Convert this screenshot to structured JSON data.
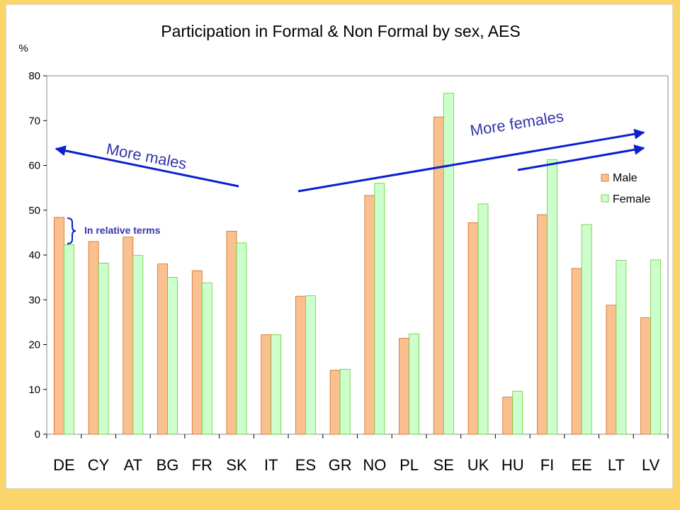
{
  "chart_data": {
    "type": "bar",
    "title": "Participation in Formal & Non Formal by sex, AES",
    "ylabel": "%",
    "xlabel": "",
    "ylim": [
      0,
      80
    ],
    "yticks": [
      0,
      10,
      20,
      30,
      40,
      50,
      60,
      70,
      80
    ],
    "grid": false,
    "legend_position": "right",
    "categories": [
      "DE",
      "CY",
      "AT",
      "BG",
      "FR",
      "SK",
      "IT",
      "ES",
      "GR",
      "NO",
      "PL",
      "SE",
      "UK",
      "HU",
      "FI",
      "EE",
      "LT",
      "LV"
    ],
    "series": [
      {
        "name": "Male",
        "color": "#fac090",
        "values": [
          48.4,
          43.0,
          44.0,
          38.0,
          36.5,
          45.3,
          22.2,
          30.8,
          14.3,
          53.3,
          21.4,
          70.8,
          47.2,
          8.3,
          49.0,
          37.0,
          28.8,
          26.0
        ]
      },
      {
        "name": "Female",
        "color": "#ccffcc",
        "values": [
          42.3,
          38.2,
          39.9,
          35.0,
          33.8,
          42.7,
          22.2,
          30.9,
          14.5,
          56.0,
          22.4,
          76.1,
          51.4,
          9.6,
          61.3,
          46.8,
          38.8,
          38.9
        ]
      }
    ],
    "annotations": {
      "more_males": "More males",
      "more_females": "More females",
      "relative": "In relative terms"
    }
  },
  "colors": {
    "annotation": "#3333aa",
    "arrow": "#0a1fd0",
    "male_edge": "#d2691e",
    "female_edge": "#66cc33",
    "background_band": "#fbd56a"
  }
}
